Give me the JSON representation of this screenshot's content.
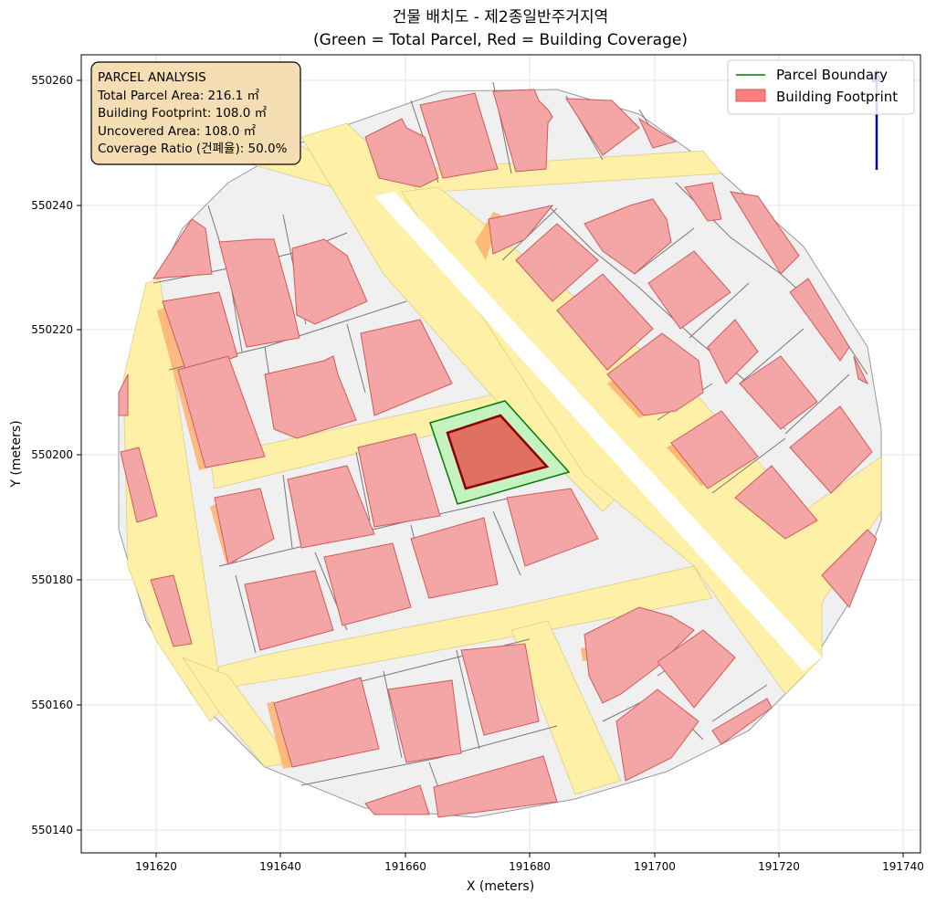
{
  "title": {
    "line1": "건물 배치도 - 제2종일반주거지역",
    "line2": "(Green = Total Parcel, Red = Building Coverage)"
  },
  "axes": {
    "xlabel": "X (meters)",
    "ylabel": "Y (meters)",
    "x_ticks": [
      "191620",
      "191640",
      "191660",
      "191680",
      "191700",
      "191720",
      "191740"
    ],
    "y_ticks": [
      "550140",
      "550160",
      "550180",
      "550200",
      "550220",
      "550240",
      "550260"
    ]
  },
  "legend": {
    "position": "top-right",
    "items": [
      {
        "label": "Parcel Boundary",
        "color": "#007a00",
        "kind": "line"
      },
      {
        "label": "Building Footprint",
        "color": "#ff7f7f",
        "kind": "patch"
      }
    ]
  },
  "info_box": {
    "lines": [
      "PARCEL ANALYSIS",
      "Total Parcel Area: 216.1 ㎡",
      "Building Footprint: 108.0 ㎡",
      "Uncovered Area: 108.0 ㎡",
      "Coverage Ratio (건폐율): 50.0%"
    ]
  },
  "colors": {
    "road": "#fff0a8",
    "parcel_fill": "#f0f0f0",
    "building_fill": "#f4a6a6",
    "highlight_parcel": "#c4f2c0",
    "highlight_building": "#e07060",
    "north_arrow": "#0000cc"
  }
}
